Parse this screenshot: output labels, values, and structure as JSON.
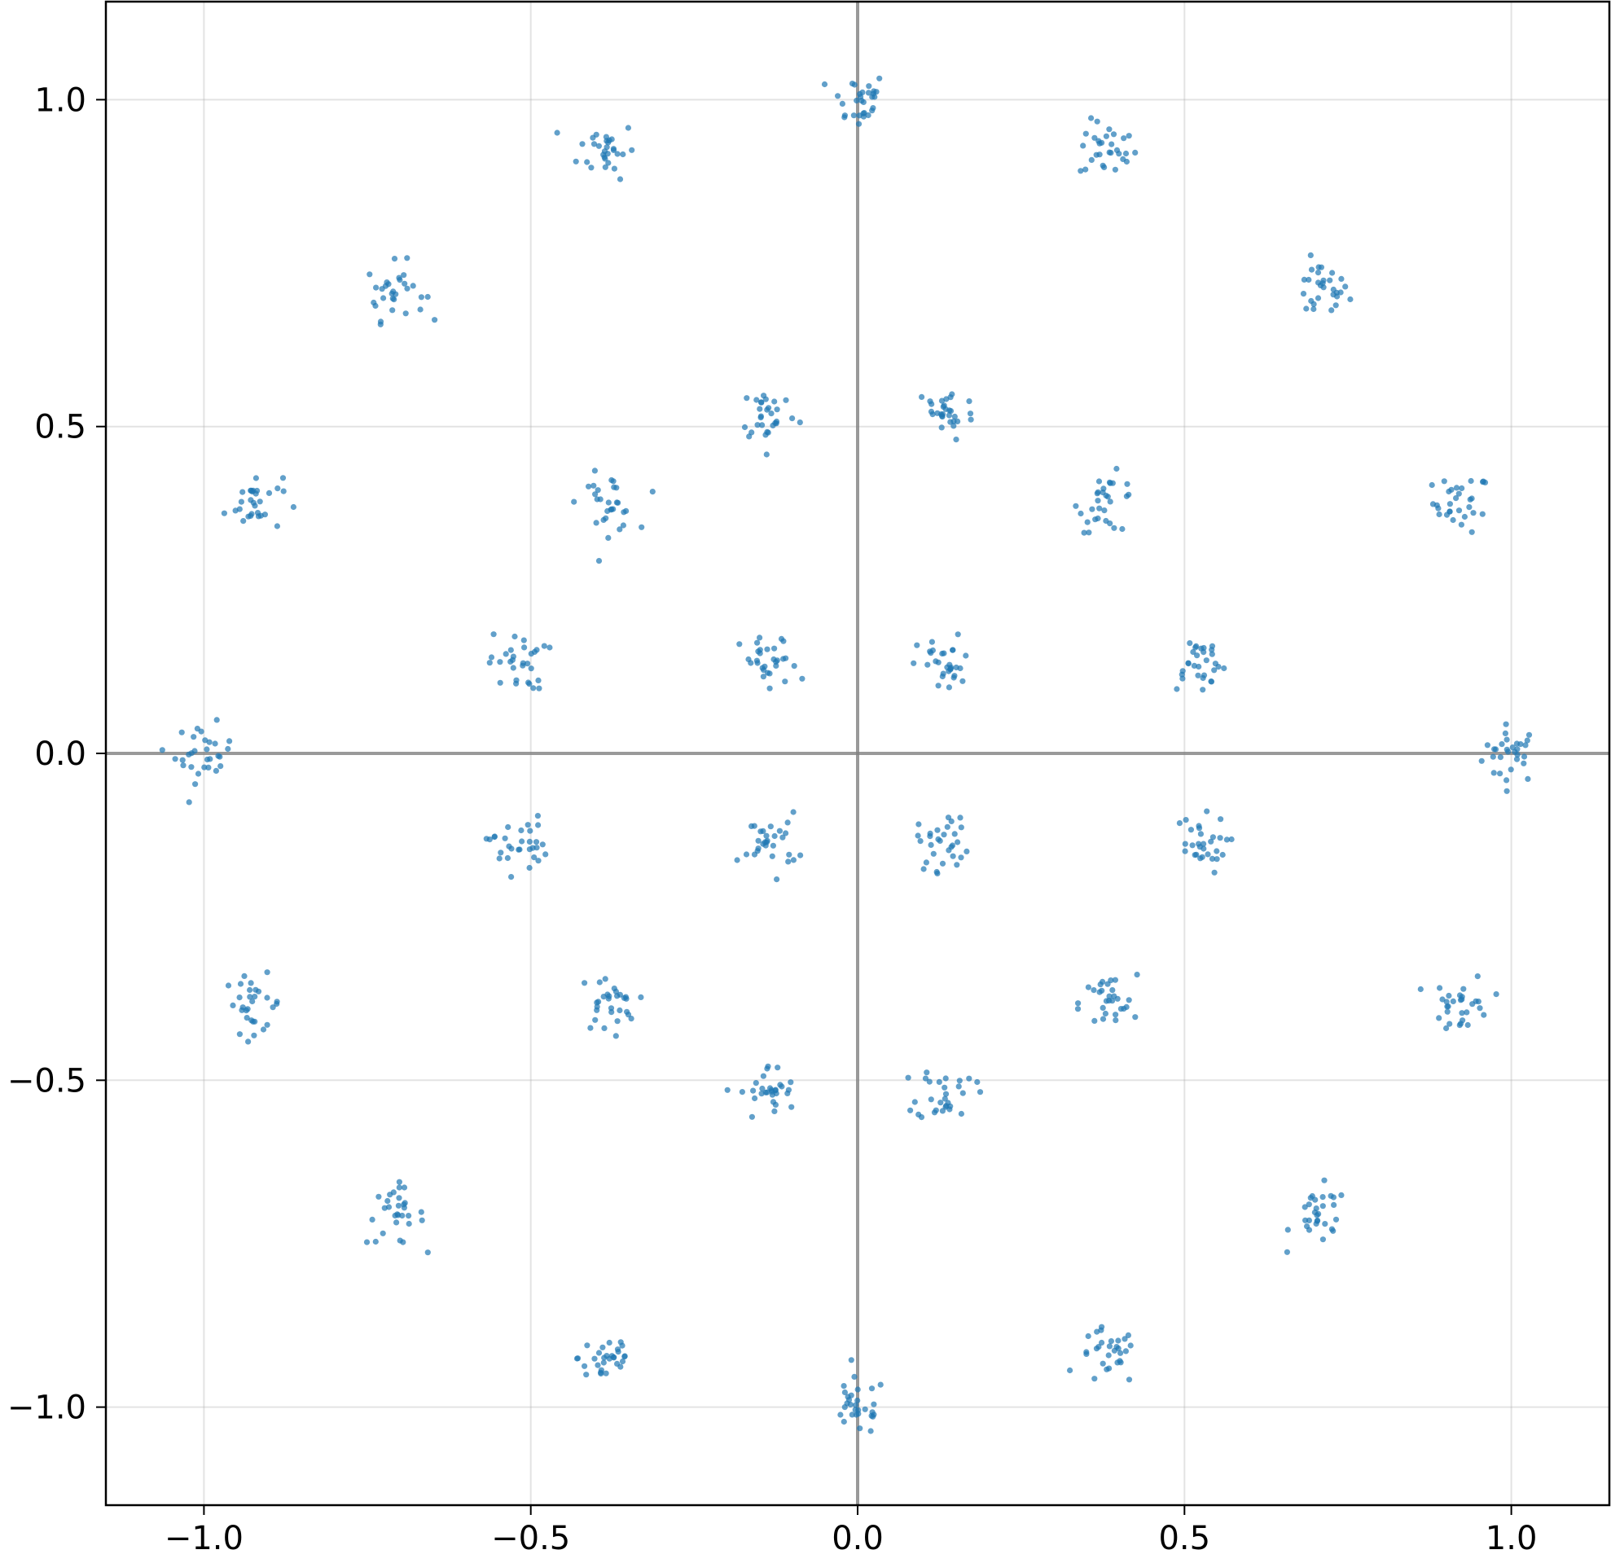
{
  "chart_data": {
    "type": "scatter",
    "title": "",
    "xlabel": "",
    "ylabel": "",
    "xlim": [
      -1.15,
      1.15
    ],
    "ylim": [
      -1.15,
      1.15
    ],
    "xticks": [
      {
        "value": -1.0,
        "label": "−1.0"
      },
      {
        "value": -0.5,
        "label": "−0.5"
      },
      {
        "value": 0.0,
        "label": "0.0"
      },
      {
        "value": 0.5,
        "label": "0.5"
      },
      {
        "value": 1.0,
        "label": "1.0"
      }
    ],
    "yticks": [
      {
        "value": -1.0,
        "label": "−1.0"
      },
      {
        "value": -0.5,
        "label": "−0.5"
      },
      {
        "value": 0.0,
        "label": "0.0"
      },
      {
        "value": 0.5,
        "label": "0.5"
      },
      {
        "value": 1.0,
        "label": "1.0"
      }
    ],
    "grid": true,
    "zero_axes": true,
    "point_color": "#1f77b4",
    "points_per_cluster": 30,
    "cluster_spread": 0.022,
    "clusters": [
      {
        "x": 1.0,
        "y": 0.0
      },
      {
        "x": 0.924,
        "y": 0.383
      },
      {
        "x": 0.707,
        "y": 0.707
      },
      {
        "x": 0.383,
        "y": 0.924
      },
      {
        "x": 0.0,
        "y": 1.0
      },
      {
        "x": -0.383,
        "y": 0.924
      },
      {
        "x": -0.707,
        "y": 0.707
      },
      {
        "x": -0.924,
        "y": 0.383
      },
      {
        "x": -1.0,
        "y": 0.0
      },
      {
        "x": -0.924,
        "y": -0.383
      },
      {
        "x": -0.707,
        "y": -0.707
      },
      {
        "x": -0.383,
        "y": -0.924
      },
      {
        "x": 0.0,
        "y": -1.0
      },
      {
        "x": 0.383,
        "y": -0.924
      },
      {
        "x": 0.707,
        "y": -0.707
      },
      {
        "x": 0.924,
        "y": -0.383
      },
      {
        "x": 0.383,
        "y": 0.383
      },
      {
        "x": -0.383,
        "y": 0.383
      },
      {
        "x": -0.383,
        "y": -0.383
      },
      {
        "x": 0.383,
        "y": -0.383
      },
      {
        "x": 0.135,
        "y": 0.52
      },
      {
        "x": -0.135,
        "y": 0.52
      },
      {
        "x": -0.135,
        "y": -0.52
      },
      {
        "x": 0.135,
        "y": -0.52
      },
      {
        "x": 0.52,
        "y": 0.14
      },
      {
        "x": 0.52,
        "y": -0.14
      },
      {
        "x": -0.52,
        "y": 0.14
      },
      {
        "x": -0.52,
        "y": -0.14
      },
      {
        "x": 0.135,
        "y": 0.135
      },
      {
        "x": -0.135,
        "y": 0.135
      },
      {
        "x": -0.135,
        "y": -0.135
      },
      {
        "x": 0.135,
        "y": -0.135
      }
    ]
  }
}
